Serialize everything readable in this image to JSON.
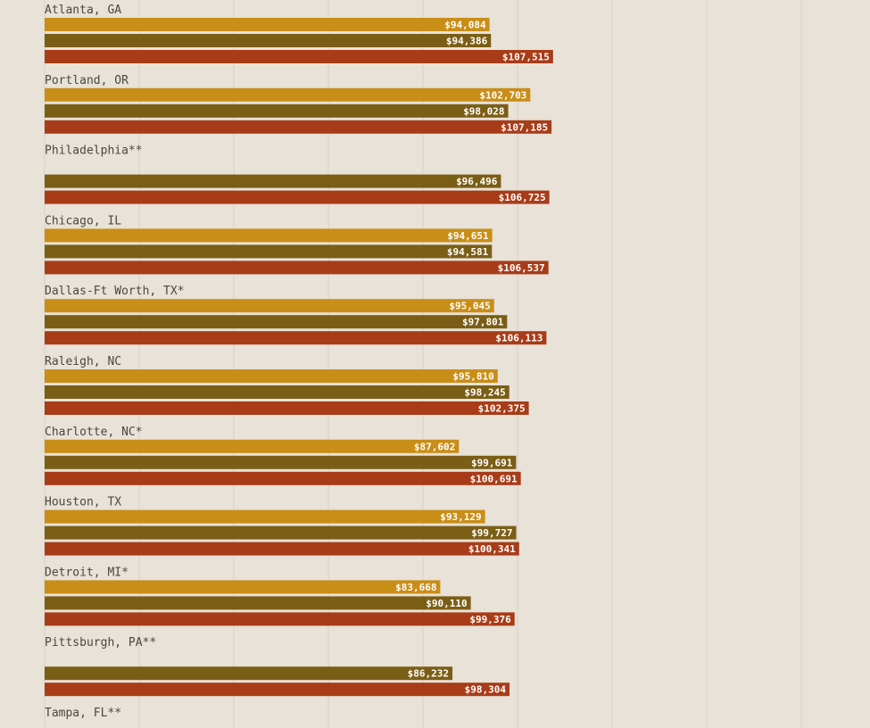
{
  "chart_data": {
    "type": "bar",
    "orientation": "horizontal",
    "grid": true,
    "xlim": [
      0,
      200000
    ],
    "gridline_values": [
      0,
      20000,
      40000,
      60000,
      80000,
      100000,
      120000,
      140000,
      160000,
      180000
    ],
    "series": [
      {
        "color": "#c98e17"
      },
      {
        "color": "#7b5e16"
      },
      {
        "color": "#a83c18"
      }
    ],
    "categories": [
      "Atlanta, GA",
      "Portland, OR",
      "Philadelphia**",
      "Chicago, IL",
      "Dallas-Ft Worth, TX*",
      "Raleigh, NC",
      "Charlotte, NC*",
      "Houston, TX",
      "Detroit, MI*",
      "Pittsburgh, PA**",
      "Tampa, FL**"
    ],
    "values": [
      [
        94084,
        94386,
        107515
      ],
      [
        102703,
        98028,
        107185
      ],
      [
        null,
        96496,
        106725
      ],
      [
        94651,
        94581,
        106537
      ],
      [
        95045,
        97801,
        106113
      ],
      [
        95810,
        98245,
        102375
      ],
      [
        87602,
        99691,
        100691
      ],
      [
        93129,
        99727,
        100341
      ],
      [
        83668,
        90110,
        99376
      ],
      [
        null,
        86232,
        98304
      ],
      [
        null,
        null,
        null
      ]
    ],
    "value_labels": [
      [
        "$94,084",
        "$94,386",
        "$107,515"
      ],
      [
        "$102,703",
        "$98,028",
        "$107,185"
      ],
      [
        null,
        "$96,496",
        "$106,725"
      ],
      [
        "$94,651",
        "$94,581",
        "$106,537"
      ],
      [
        "$95,045",
        "$97,801",
        "$106,113"
      ],
      [
        "$95,810",
        "$98,245",
        "$102,375"
      ],
      [
        "$87,602",
        "$99,691",
        "$100,691"
      ],
      [
        "$93,129",
        "$99,727",
        "$100,341"
      ],
      [
        "$83,668",
        "$90,110",
        "$99,376"
      ],
      [
        null,
        "$86,232",
        "$98,304"
      ],
      [
        null,
        null,
        null
      ]
    ]
  }
}
